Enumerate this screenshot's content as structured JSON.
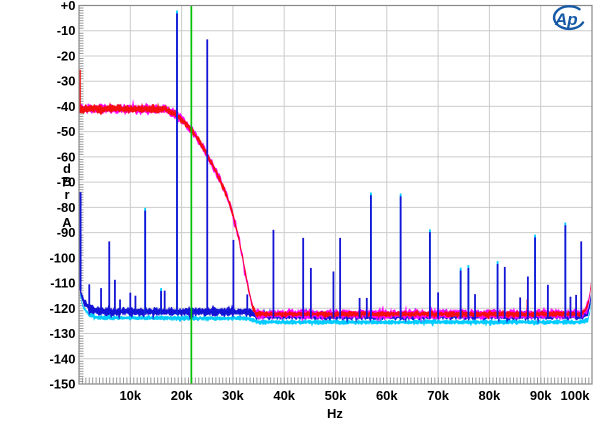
{
  "logo": {
    "text": "Ap",
    "color": "#1559a6"
  },
  "chart_data": {
    "type": "line",
    "description": "Wideband FFT spectrum: red trace = noise with low-pass filter rolloff near 30 kHz, blue trace = high-level tone at 19.1 kHz with aliasing images and harmonic spurs, cyan and magenta companion channel traces, green cursor line near 22 kHz",
    "x_axis": {
      "label": "Hz",
      "min_khz": 0,
      "max_khz": 100,
      "tick_values_khz": [
        10,
        20,
        30,
        40,
        50,
        60,
        70,
        80,
        90,
        100
      ],
      "tick_labels": [
        "10k",
        "20k",
        "30k",
        "40k",
        "50k",
        "60k",
        "70k",
        "80k",
        "90k",
        "100k"
      ],
      "minor_tick_step_khz": 0.667,
      "grid": true
    },
    "y_axis": {
      "unit_stack": [
        "d",
        "B",
        "r",
        "A"
      ],
      "min_db": -150,
      "max_db": 0,
      "tick_values_db": [
        0,
        -10,
        -20,
        -30,
        -40,
        -50,
        -60,
        -70,
        -80,
        -90,
        -100,
        -110,
        -120,
        -130,
        -140,
        -150
      ],
      "tick_labels": [
        "+0",
        "-10",
        "-20",
        "-30",
        "-40",
        "-50",
        "-60",
        "-70",
        "-80",
        "-90",
        "-100",
        "-110",
        "-120",
        "-130",
        "-140",
        "-150"
      ],
      "minor_tick_step_db": 1,
      "grid": true
    },
    "marker_line": {
      "x_khz": 21.9,
      "color": "#00c300"
    },
    "colors": {
      "red": "#f60d0d",
      "magenta": "#ff00ff",
      "blue": "#1414d6",
      "cyan": "#00ccff",
      "grid": "#cccccc",
      "border": "#888888",
      "minor_tick": "#9a9a9a",
      "text": "#000000"
    },
    "series": [
      {
        "name": "red trace (filtered noise, right channel)",
        "color_key": "red",
        "left_edge_spike": {
          "khz": 0.2,
          "top_db": -25.5
        },
        "center_points_khz_db": [
          [
            0.2,
            -41
          ],
          [
            16.8,
            -41
          ],
          [
            17.5,
            -41.8
          ],
          [
            18.5,
            -42.8
          ],
          [
            19.5,
            -44.2
          ],
          [
            20.5,
            -46.2
          ],
          [
            21.9,
            -49.3
          ],
          [
            23,
            -52.3
          ],
          [
            24,
            -55.8
          ],
          [
            25,
            -59.3
          ],
          [
            26,
            -63
          ],
          [
            27,
            -67
          ],
          [
            28,
            -71.5
          ],
          [
            29,
            -76.5
          ],
          [
            30,
            -83
          ],
          [
            31,
            -91
          ],
          [
            32,
            -101
          ],
          [
            33,
            -112
          ],
          [
            33.7,
            -118.5
          ],
          [
            34.5,
            -122.3
          ],
          [
            97.9,
            -122.3
          ],
          [
            98.8,
            -120.5
          ],
          [
            99.4,
            -117
          ],
          [
            99.8,
            -111
          ],
          [
            100,
            -104
          ]
        ],
        "band_halfwidth_db_flat": 1.9,
        "band_halfwidth_db_rolloff": 1.5,
        "band_halfwidth_db_floor": 1.3,
        "spurs": [
          {
            "khz": 87.4,
            "db": -116.5
          }
        ]
      },
      {
        "name": "blue trace (19.1 kHz tone, images and spurs, left channel)",
        "color_key": "blue",
        "left_edge_spike": {
          "khz": 0.3,
          "top_db": -74
        },
        "center_points_khz_db": [
          [
            0.2,
            -112
          ],
          [
            0.8,
            -117
          ],
          [
            2,
            -120
          ],
          [
            4,
            -121.2
          ],
          [
            33,
            -121.4
          ],
          [
            35,
            -122.9
          ],
          [
            98,
            -122.9
          ],
          [
            99.2,
            -122
          ],
          [
            99.7,
            -118
          ],
          [
            100,
            -110
          ]
        ],
        "band_halfwidth_db": 2.0,
        "spikes": [
          {
            "khz": 2.0,
            "db": -110.5
          },
          {
            "khz": 4.3,
            "db": -112.0
          },
          {
            "khz": 5.9,
            "db": -93.5
          },
          {
            "khz": 7.0,
            "db": -108.7
          },
          {
            "khz": 8.0,
            "db": -116.5
          },
          {
            "khz": 10.0,
            "db": -113.8
          },
          {
            "khz": 11.0,
            "db": -115.0
          },
          {
            "khz": 12.9,
            "db": -80.2,
            "cyan_tip": true
          },
          {
            "khz": 16.0,
            "db": -112.0,
            "cyan_tip": true
          },
          {
            "khz": 16.7,
            "db": -113.0
          },
          {
            "khz": 19.1,
            "db": -2.0,
            "cyan_tip": true
          },
          {
            "khz": 25.0,
            "db": -13.4
          },
          {
            "khz": 30.1,
            "db": -92.9
          },
          {
            "khz": 32.8,
            "db": -114.5
          },
          {
            "khz": 37.9,
            "db": -88.9
          },
          {
            "khz": 43.7,
            "db": -92.1
          },
          {
            "khz": 45.2,
            "db": -104.0
          },
          {
            "khz": 49.6,
            "db": -105.4
          },
          {
            "khz": 50.9,
            "db": -92.1
          },
          {
            "khz": 54.7,
            "db": -115.9
          },
          {
            "khz": 56.1,
            "db": -115.9
          },
          {
            "khz": 56.9,
            "db": -74.1,
            "cyan_tip": true
          },
          {
            "khz": 62.7,
            "db": -74.5,
            "cyan_tip": true
          },
          {
            "khz": 68.4,
            "db": -88.7,
            "cyan_tip": true
          },
          {
            "khz": 70.0,
            "db": -113.7
          },
          {
            "khz": 74.4,
            "db": -103.9,
            "cyan_tip": true
          },
          {
            "khz": 75.9,
            "db": -102.9,
            "cyan_tip": true
          },
          {
            "khz": 77.2,
            "db": -114.4
          },
          {
            "khz": 81.6,
            "db": -101.3,
            "cyan_tip": true
          },
          {
            "khz": 83.0,
            "db": -103.6
          },
          {
            "khz": 86.0,
            "db": -115.7
          },
          {
            "khz": 87.5,
            "db": -107.4
          },
          {
            "khz": 88.9,
            "db": -90.8,
            "cyan_tip": true
          },
          {
            "khz": 91.4,
            "db": -110.7
          },
          {
            "khz": 94.8,
            "db": -86.0,
            "cyan_tip": true
          },
          {
            "khz": 95.8,
            "db": -115.4
          },
          {
            "khz": 96.9,
            "db": -114.7
          },
          {
            "khz": 97.9,
            "db": -93.5
          }
        ]
      },
      {
        "name": "cyan trace (companion of blue)",
        "color_key": "cyan",
        "offset_below_blue_db": 2.6,
        "band_halfwidth_db": 1.1
      },
      {
        "name": "magenta trace (companion of red)",
        "color_key": "magenta",
        "band_halfwidth_db": 2.2
      }
    ]
  }
}
